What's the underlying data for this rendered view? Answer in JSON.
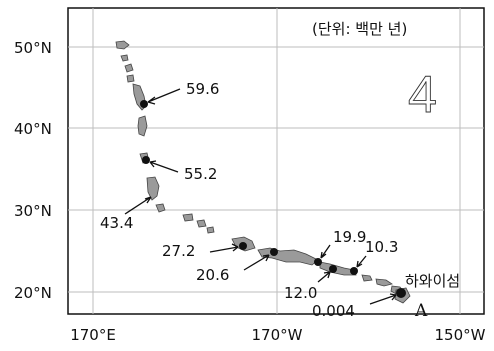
{
  "map": {
    "unit_label": "(단위: 백만 년)",
    "panel_number": "4",
    "point_label": "A",
    "place_label": "하와이섬",
    "lat_ticks": [
      "50°N",
      "40°N",
      "30°N",
      "20°N"
    ],
    "lon_ticks": [
      "170°E",
      "170°W",
      "150°W"
    ],
    "ages": [
      "59.6",
      "55.2",
      "43.4",
      "27.2",
      "20.6",
      "19.9",
      "12.0",
      "10.3",
      "0.004"
    ]
  }
}
